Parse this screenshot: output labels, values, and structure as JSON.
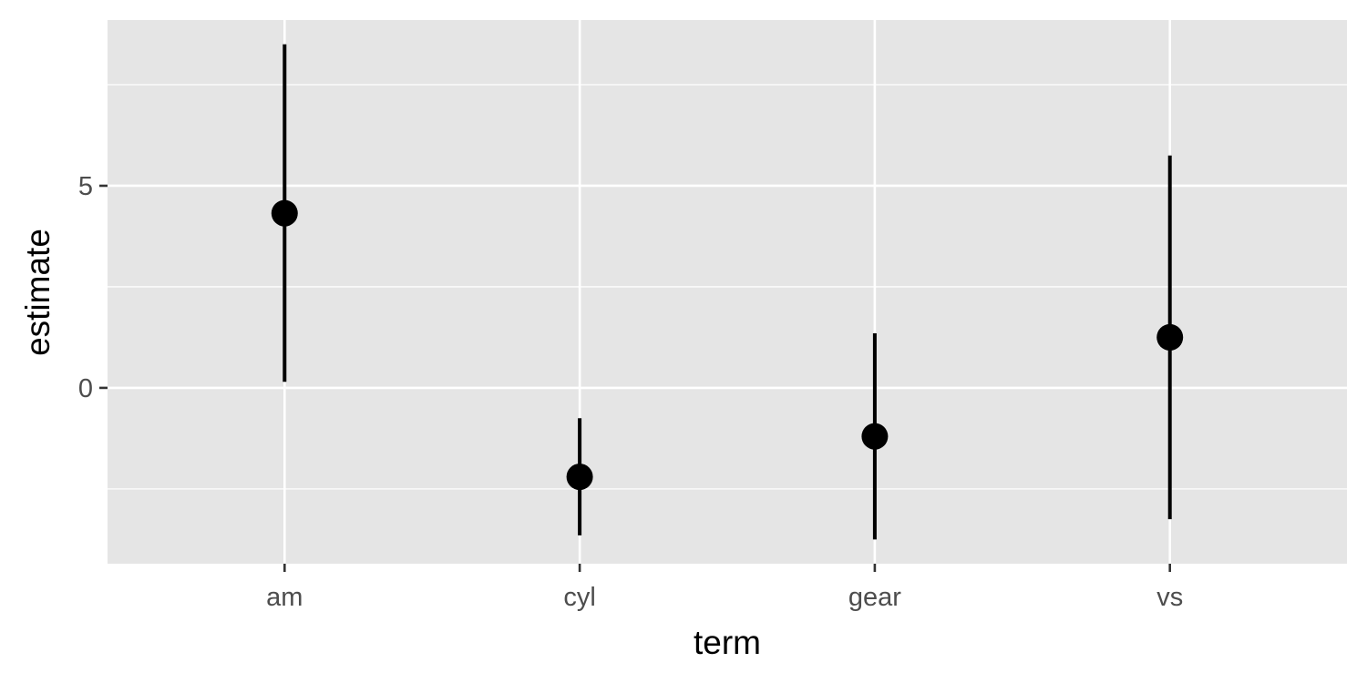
{
  "chart_data": {
    "type": "pointrange",
    "title": "",
    "xlabel": "term",
    "ylabel": "estimate",
    "categories": [
      "am",
      "cyl",
      "gear",
      "vs"
    ],
    "estimate": [
      4.32,
      -2.2,
      -1.2,
      1.25
    ],
    "conf_low": [
      0.15,
      -3.65,
      -3.75,
      -3.25
    ],
    "conf_high": [
      8.5,
      -0.75,
      1.35,
      5.75
    ],
    "ylim": [
      -4.35,
      9.1
    ],
    "y_major_ticks": [
      0,
      5
    ],
    "y_minor_ticks": [
      -2.5,
      2.5,
      7.5
    ],
    "grid": true,
    "legend": "none"
  }
}
